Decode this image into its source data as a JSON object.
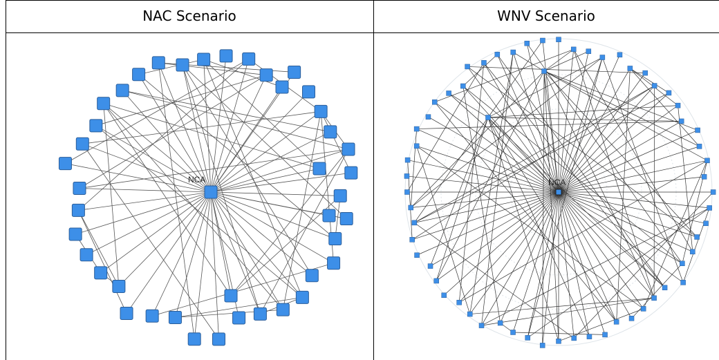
{
  "table": {
    "header": [
      "NAC Scenario",
      "WNV Scenario"
    ]
  },
  "diagrams": [
    {
      "hub_label": "NCA"
    },
    {
      "hub_label": "NCA"
    }
  ]
}
